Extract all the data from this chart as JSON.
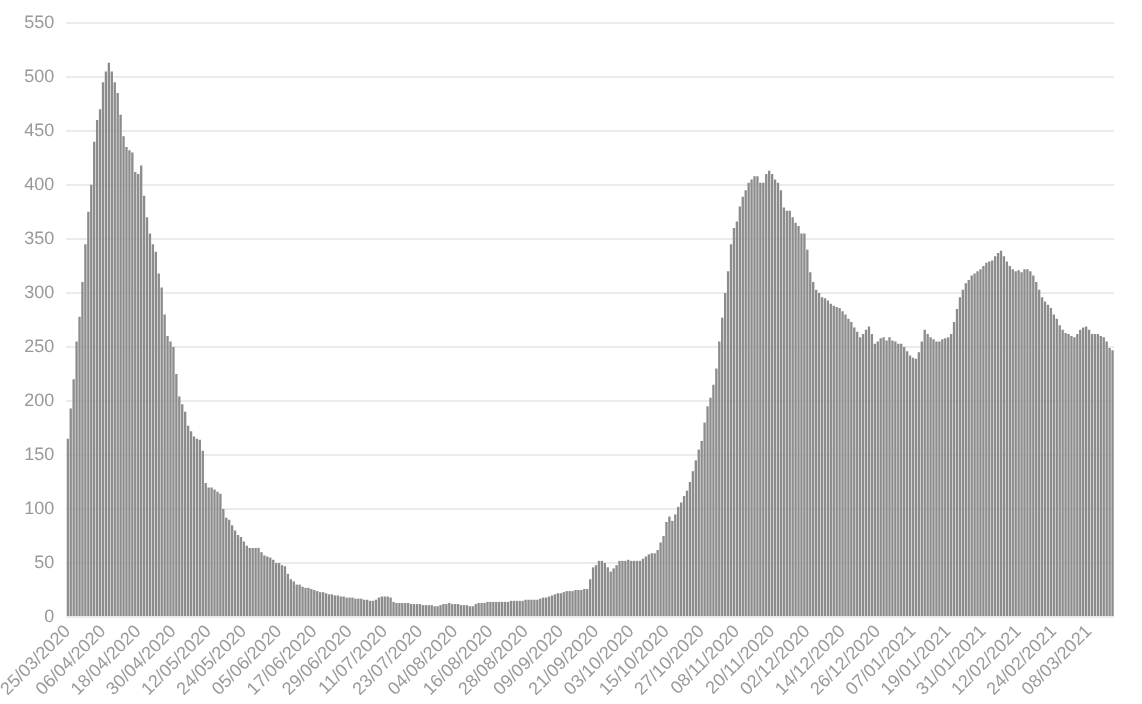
{
  "chart_data": {
    "type": "bar",
    "categories": [
      "25/03/2020",
      null,
      null,
      null,
      null,
      null,
      null,
      null,
      null,
      null,
      null,
      null,
      "06/04/2020",
      null,
      null,
      null,
      null,
      null,
      null,
      null,
      null,
      null,
      null,
      null,
      "18/04/2020",
      null,
      null,
      null,
      null,
      null,
      null,
      null,
      null,
      null,
      null,
      null,
      "30/04/2020",
      null,
      null,
      null,
      null,
      null,
      null,
      null,
      null,
      null,
      null,
      null,
      "12/05/2020",
      null,
      null,
      null,
      null,
      null,
      null,
      null,
      null,
      null,
      null,
      null,
      "24/05/2020",
      null,
      null,
      null,
      null,
      null,
      null,
      null,
      null,
      null,
      null,
      null,
      "05/06/2020",
      null,
      null,
      null,
      null,
      null,
      null,
      null,
      null,
      null,
      null,
      null,
      "17/06/2020",
      null,
      null,
      null,
      null,
      null,
      null,
      null,
      null,
      null,
      null,
      null,
      "29/06/2020",
      null,
      null,
      null,
      null,
      null,
      null,
      null,
      null,
      null,
      null,
      null,
      "11/07/2020",
      null,
      null,
      null,
      null,
      null,
      null,
      null,
      null,
      null,
      null,
      null,
      "23/07/2020",
      null,
      null,
      null,
      null,
      null,
      null,
      null,
      null,
      null,
      null,
      null,
      "04/08/2020",
      null,
      null,
      null,
      null,
      null,
      null,
      null,
      null,
      null,
      null,
      null,
      "16/08/2020",
      null,
      null,
      null,
      null,
      null,
      null,
      null,
      null,
      null,
      null,
      null,
      "28/08/2020",
      null,
      null,
      null,
      null,
      null,
      null,
      null,
      null,
      null,
      null,
      null,
      "09/09/2020",
      null,
      null,
      null,
      null,
      null,
      null,
      null,
      null,
      null,
      null,
      null,
      "21/09/2020",
      null,
      null,
      null,
      null,
      null,
      null,
      null,
      null,
      null,
      null,
      null,
      "03/10/2020",
      null,
      null,
      null,
      null,
      null,
      null,
      null,
      null,
      null,
      null,
      null,
      "15/10/2020",
      null,
      null,
      null,
      null,
      null,
      null,
      null,
      null,
      null,
      null,
      null,
      "27/10/2020",
      null,
      null,
      null,
      null,
      null,
      null,
      null,
      null,
      null,
      null,
      null,
      "08/11/2020",
      null,
      null,
      null,
      null,
      null,
      null,
      null,
      null,
      null,
      null,
      null,
      "20/11/2020",
      null,
      null,
      null,
      null,
      null,
      null,
      null,
      null,
      null,
      null,
      null,
      "02/12/2020",
      null,
      null,
      null,
      null,
      null,
      null,
      null,
      null,
      null,
      null,
      null,
      "14/12/2020",
      null,
      null,
      null,
      null,
      null,
      null,
      null,
      null,
      null,
      null,
      null,
      "26/12/2020",
      null,
      null,
      null,
      null,
      null,
      null,
      null,
      null,
      null,
      null,
      null,
      "07/01/2021",
      null,
      null,
      null,
      null,
      null,
      null,
      null,
      null,
      null,
      null,
      null,
      "19/01/2021",
      null,
      null,
      null,
      null,
      null,
      null,
      null,
      null,
      null,
      null,
      null,
      "31/01/2021",
      null,
      null,
      null,
      null,
      null,
      null,
      null,
      null,
      null,
      null,
      null,
      "12/02/2021",
      null,
      null,
      null,
      null,
      null,
      null,
      null,
      null,
      null,
      null,
      null,
      "24/02/2021",
      null,
      null,
      null,
      null,
      null,
      null,
      null,
      null,
      null,
      null,
      null,
      "08/03/2021",
      null,
      null,
      null,
      null,
      null,
      null,
      null,
      null
    ],
    "values": [
      165,
      193,
      220,
      255,
      278,
      310,
      345,
      375,
      400,
      440,
      460,
      470,
      495,
      505,
      513,
      505,
      495,
      485,
      465,
      445,
      435,
      432,
      430,
      412,
      410,
      418,
      390,
      370,
      355,
      345,
      338,
      318,
      305,
      280,
      260,
      255,
      250,
      225,
      204,
      197,
      190,
      177,
      172,
      167,
      165,
      164,
      154,
      124,
      120,
      120,
      118,
      116,
      114,
      100,
      92,
      90,
      85,
      80,
      76,
      74,
      70,
      66,
      64,
      64,
      64,
      64,
      60,
      57,
      56,
      55,
      53,
      50,
      50,
      48,
      47,
      40,
      35,
      33,
      30,
      30,
      28,
      27,
      27,
      26,
      25,
      24,
      23,
      23,
      22,
      21,
      21,
      20,
      20,
      19,
      19,
      18,
      18,
      18,
      17,
      17,
      17,
      16,
      16,
      15,
      15,
      16,
      18,
      19,
      19,
      19,
      18,
      14,
      13,
      13,
      13,
      13,
      13,
      12,
      12,
      12,
      12,
      11,
      11,
      11,
      11,
      10,
      10,
      11,
      12,
      12,
      13,
      12,
      12,
      12,
      11,
      11,
      11,
      10,
      10,
      12,
      13,
      13,
      13,
      14,
      14,
      14,
      14,
      14,
      14,
      14,
      14,
      15,
      15,
      15,
      15,
      15,
      16,
      16,
      16,
      16,
      16,
      17,
      18,
      18,
      19,
      20,
      21,
      22,
      22,
      23,
      24,
      24,
      24,
      25,
      25,
      25,
      26,
      26,
      35,
      46,
      48,
      52,
      52,
      50,
      46,
      42,
      45,
      48,
      52,
      52,
      52,
      53,
      52,
      52,
      52,
      52,
      54,
      56,
      58,
      59,
      59,
      62,
      69,
      75,
      88,
      93,
      89,
      95,
      102,
      106,
      112,
      117,
      125,
      135,
      145,
      155,
      163,
      180,
      195,
      203,
      215,
      230,
      255,
      277,
      300,
      320,
      345,
      360,
      366,
      380,
      389,
      395,
      402,
      405,
      408,
      408,
      402,
      402,
      410,
      413,
      410,
      405,
      402,
      395,
      379,
      376,
      376,
      370,
      365,
      362,
      355,
      355,
      340,
      319,
      310,
      303,
      300,
      296,
      295,
      293,
      290,
      288,
      287,
      286,
      283,
      280,
      276,
      273,
      268,
      264,
      259,
      262,
      266,
      269,
      262,
      253,
      255,
      258,
      259,
      256,
      259,
      256,
      255,
      253,
      253,
      250,
      246,
      242,
      240,
      239,
      245,
      255,
      266,
      262,
      259,
      257,
      255,
      255,
      257,
      258,
      259,
      262,
      273,
      285,
      296,
      303,
      309,
      312,
      316,
      318,
      320,
      322,
      325,
      328,
      329,
      330,
      334,
      337,
      339,
      334,
      329,
      325,
      322,
      320,
      321,
      319,
      322,
      322,
      320,
      316,
      310,
      303,
      296,
      292,
      289,
      286,
      280,
      276,
      270,
      266,
      263,
      262,
      260,
      259,
      262,
      266,
      268,
      269,
      266,
      262,
      262,
      262,
      260,
      259,
      255,
      249,
      247
    ],
    "color": "#8c8c8c",
    "ylim": [
      0,
      550
    ],
    "yticks": [
      0,
      50,
      100,
      150,
      200,
      250,
      300,
      350,
      400,
      450,
      500,
      550
    ],
    "grid": "y"
  }
}
